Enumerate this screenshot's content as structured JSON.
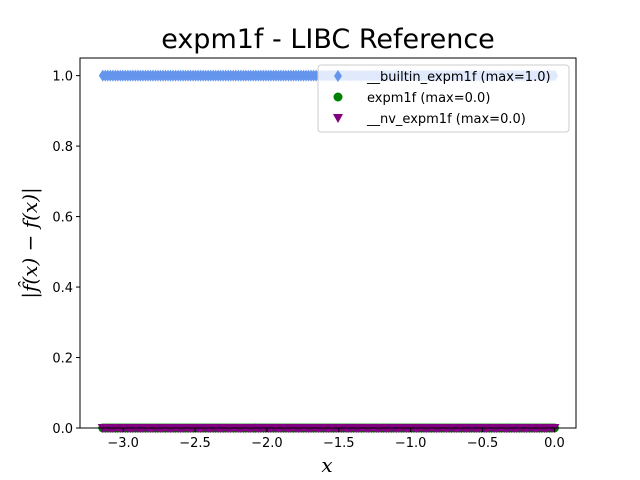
{
  "chart_data": {
    "type": "scatter",
    "title": "expm1f - LIBC Reference",
    "xlabel": "x",
    "ylabel": "|f̂(x) − f(x)|",
    "xlim": [
      -3.3,
      0.15
    ],
    "ylim": [
      0.0,
      1.05
    ],
    "x_ticks": [
      -3.0,
      -2.5,
      -2.0,
      -1.5,
      -1.0,
      -0.5,
      0.0
    ],
    "x_tick_labels": [
      "−3.0",
      "−2.5",
      "−2.0",
      "−1.5",
      "−1.0",
      "−0.5",
      "0.0"
    ],
    "y_ticks": [
      0.0,
      0.2,
      0.4,
      0.6,
      0.8,
      1.0
    ],
    "y_tick_labels": [
      "0.0",
      "0.2",
      "0.4",
      "0.6",
      "0.8",
      "1.0"
    ],
    "grid": false,
    "legend_position": "top-right",
    "series": [
      {
        "name": "__builtin_expm1f (max=1.0)",
        "marker": "diamond",
        "color": "#6495ed",
        "x_range": [
          -3.14159,
          0.0
        ],
        "y": 1.0
      },
      {
        "name": "expm1f (max=0.0)",
        "marker": "circle",
        "color": "#008000",
        "x_range": [
          -3.14159,
          0.0
        ],
        "y": 0.0
      },
      {
        "name": "__nv_expm1f (max=0.0)",
        "marker": "triangle-down",
        "color": "#800080",
        "x_range": [
          -3.14159,
          0.0
        ],
        "y": 0.0
      }
    ]
  }
}
